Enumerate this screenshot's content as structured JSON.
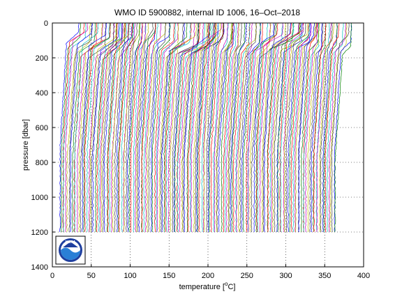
{
  "chart_data": {
    "type": "line",
    "title": "WMO ID 5900882, internal ID 1006, 16–Oct–2018",
    "xlabel": "temperature [",
    "xlabel_unit_sup": "o",
    "xlabel_unit_end": "C]",
    "ylabel": "pressure [dbar]",
    "xlim": [
      0,
      400
    ],
    "ylim": [
      0,
      1400
    ],
    "y_reversed": true,
    "xticks": [
      "0",
      "50",
      "100",
      "150",
      "200",
      "250",
      "300",
      "350",
      "400"
    ],
    "yticks": [
      "0",
      "200",
      "400",
      "600",
      "800",
      "1000",
      "1200",
      "1400"
    ],
    "grid": "dotted",
    "profile_count": 170,
    "profile_spacing": 2.1,
    "profile_start_offset": 8,
    "profile_max_pressure": 1200,
    "series_colors": [
      "#0000ff",
      "#008000",
      "#ff0000",
      "#00bfbf",
      "#bf00bf",
      "#bfbf00",
      "#404040"
    ]
  },
  "logo": {
    "name": "noaa-logo",
    "text": "NOAA"
  }
}
